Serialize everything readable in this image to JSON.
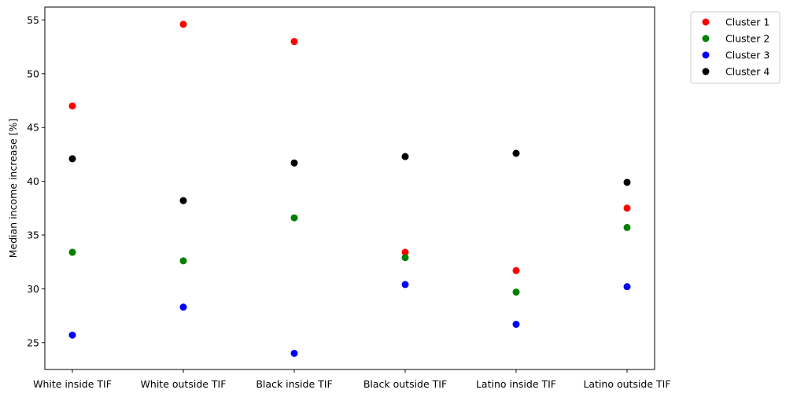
{
  "chart_data": {
    "type": "scatter",
    "title": "",
    "xlabel": "",
    "ylabel": "Median income increase [%]",
    "categories": [
      "White inside TIF",
      "White outside TIF",
      "Black inside TIF",
      "Black outside TIF",
      "Latino inside TIF",
      "Latino outside TIF"
    ],
    "ylim": [
      22.5,
      56.2
    ],
    "yticks": [
      25,
      30,
      35,
      40,
      45,
      50,
      55
    ],
    "grid": false,
    "legend_position": "outside-top-right",
    "series": [
      {
        "name": "Cluster 1",
        "color": "#ff0000",
        "values": [
          47.0,
          54.6,
          53.0,
          33.4,
          31.7,
          37.5
        ]
      },
      {
        "name": "Cluster 2",
        "color": "#008000",
        "values": [
          33.4,
          32.6,
          36.6,
          32.9,
          29.7,
          35.7
        ]
      },
      {
        "name": "Cluster 3",
        "color": "#0000ff",
        "values": [
          25.7,
          28.3,
          24.0,
          30.4,
          26.7,
          30.2
        ]
      },
      {
        "name": "Cluster 4",
        "color": "#000000",
        "values": [
          42.1,
          38.2,
          41.7,
          42.3,
          42.6,
          39.9
        ]
      }
    ]
  }
}
